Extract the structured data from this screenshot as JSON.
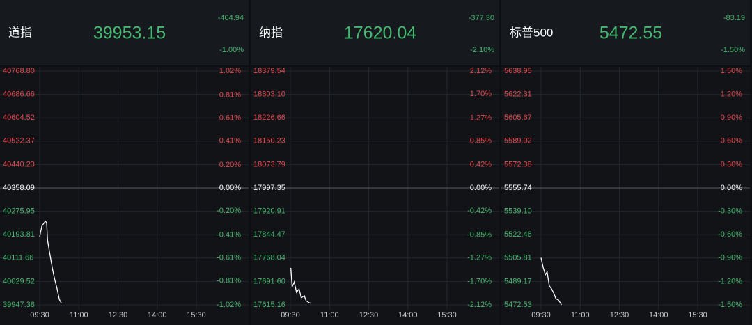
{
  "chart_data": [
    {
      "type": "line",
      "title": "道指",
      "price": "39953.15",
      "change": "-404.94",
      "change_pct": "-1.00%",
      "color": "#ffffff",
      "up_color": "#e5484d",
      "down_color": "#47b86f",
      "flat_color": "#ffffff",
      "grid": true,
      "x": [
        570,
        575,
        583,
        586,
        588,
        592,
        599,
        604,
        610,
        615,
        620
      ],
      "values": [
        40187,
        40224,
        40241,
        40236,
        40175,
        40138,
        40077,
        40040,
        40004,
        39967,
        39953.15
      ],
      "xlim": [
        570,
        960
      ],
      "xticks": [
        {
          "value": 570,
          "label": "09:30"
        },
        {
          "value": 660,
          "label": "11:00"
        },
        {
          "value": 750,
          "label": "12:30"
        },
        {
          "value": 840,
          "label": "14:00"
        },
        {
          "value": 930,
          "label": "15:30"
        }
      ],
      "ylim": [
        39947.38,
        40768.8
      ],
      "yticks": [
        {
          "value": 40768.8,
          "label": "40768.80"
        },
        40686.66,
        40604.52,
        40522.37,
        40440.23,
        40358.09,
        40275.95,
        40193.81,
        40111.66,
        40029.52,
        39947.38
      ],
      "y2lim": [
        -1.02,
        1.02
      ],
      "y2ticks": [
        {
          "value": 1.02,
          "label": "1.02%"
        },
        {
          "value": 0.81,
          "label": "0.81%"
        },
        {
          "value": 0.61,
          "label": "0.61%"
        },
        {
          "value": 0.41,
          "label": "0.41%"
        },
        {
          "value": 0.2,
          "label": "0.20%"
        },
        {
          "value": 0,
          "label": "0.00%"
        },
        {
          "value": -0.2,
          "label": "-0.20%"
        },
        {
          "value": -0.41,
          "label": "-0.41%"
        },
        {
          "value": -0.61,
          "label": "-0.61%"
        },
        {
          "value": -0.81,
          "label": "-0.81%"
        },
        {
          "value": -1.02,
          "label": "-1.02%"
        }
      ]
    },
    {
      "type": "line",
      "title": "纳指",
      "price": "17620.04",
      "change": "-377.30",
      "change_pct": "-2.10%",
      "color": "#ffffff",
      "up_color": "#e5484d",
      "down_color": "#47b86f",
      "flat_color": "#ffffff",
      "grid": true,
      "x": [
        571,
        574,
        579,
        584,
        590,
        595,
        602,
        606,
        613,
        618
      ],
      "values": [
        17736,
        17674,
        17690,
        17656,
        17667,
        17638,
        17645,
        17629,
        17622,
        17620.04
      ],
      "xlim": [
        570,
        960
      ],
      "xticks": [
        {
          "value": 570,
          "label": "09:30"
        },
        {
          "value": 660,
          "label": "11:00"
        },
        {
          "value": 750,
          "label": "12:30"
        },
        {
          "value": 840,
          "label": "14:00"
        },
        {
          "value": 930,
          "label": "15:30"
        }
      ],
      "ylim": [
        17615.16,
        18379.54
      ],
      "yticks": [
        18379.54,
        {
          "value": 18303.1,
          "label": "18303.10"
        },
        18226.66,
        18150.23,
        18073.79,
        17997.35,
        17920.91,
        17844.47,
        17768.04,
        {
          "value": 17691.6,
          "label": "17691.60"
        },
        17615.16
      ],
      "y2lim": [
        -2.12,
        2.12
      ],
      "y2ticks": [
        {
          "value": 2.12,
          "label": "2.12%"
        },
        {
          "value": 1.7,
          "label": "1.70%"
        },
        {
          "value": 1.27,
          "label": "1.27%"
        },
        {
          "value": 0.85,
          "label": "0.85%"
        },
        {
          "value": 0.42,
          "label": "0.42%"
        },
        {
          "value": 0,
          "label": "0.00%"
        },
        {
          "value": -0.42,
          "label": "-0.42%"
        },
        {
          "value": -0.85,
          "label": "-0.85%"
        },
        {
          "value": -1.27,
          "label": "-1.27%"
        },
        {
          "value": -1.7,
          "label": "-1.70%"
        },
        {
          "value": -2.12,
          "label": "-2.12%"
        }
      ]
    },
    {
      "type": "line",
      "title": "标普500",
      "price": "5472.55",
      "change": "-83.19",
      "change_pct": "-1.50%",
      "color": "#ffffff",
      "up_color": "#e5484d",
      "down_color": "#47b86f",
      "flat_color": "#ffffff",
      "grid": true,
      "x": [
        570,
        575,
        580,
        584,
        589,
        594,
        599,
        604,
        610,
        617
      ],
      "values": [
        5506,
        5499,
        5494,
        5496,
        5486,
        5484,
        5481,
        5477,
        5476,
        5472.55
      ],
      "xlim": [
        570,
        960
      ],
      "xticks": [
        {
          "value": 570,
          "label": "09:30"
        },
        {
          "value": 660,
          "label": "11:00"
        },
        {
          "value": 750,
          "label": "12:30"
        },
        {
          "value": 840,
          "label": "14:00"
        },
        {
          "value": 930,
          "label": "15:30"
        }
      ],
      "ylim": [
        5472.53,
        5638.95
      ],
      "yticks": [
        5638.95,
        5622.31,
        5605.67,
        5589.02,
        5572.38,
        5555.74,
        {
          "value": 5539.1,
          "label": "5539.10"
        },
        5522.46,
        5505.81,
        5489.17,
        5472.53
      ],
      "y2lim": [
        -1.5,
        1.5
      ],
      "y2ticks": [
        {
          "value": 1.5,
          "label": "1.50%"
        },
        {
          "value": 1.2,
          "label": "1.20%"
        },
        {
          "value": 0.9,
          "label": "0.90%"
        },
        {
          "value": 0.6,
          "label": "0.60%"
        },
        {
          "value": 0.3,
          "label": "0.30%"
        },
        {
          "value": 0,
          "label": "0.00%"
        },
        {
          "value": -0.3,
          "label": "-0.30%"
        },
        {
          "value": -0.6,
          "label": "-0.60%"
        },
        {
          "value": -0.9,
          "label": "-0.90%"
        },
        {
          "value": -1.2,
          "label": "-1.20%"
        },
        {
          "value": -1.5,
          "label": "-1.50%"
        }
      ]
    }
  ]
}
